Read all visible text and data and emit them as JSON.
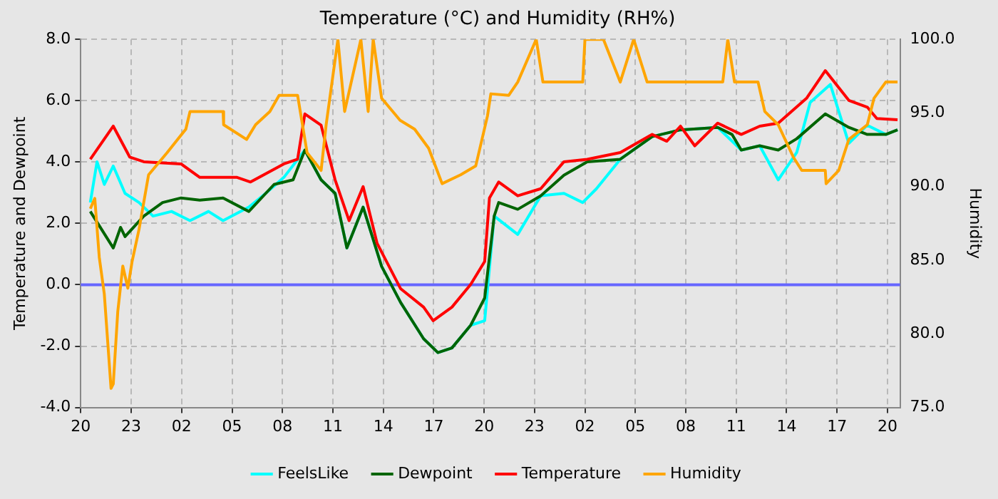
{
  "chart_data": {
    "type": "line",
    "title": "Temperature (°C) and Humidity (RH%)",
    "ylabel": "Temperature and Dewpoint",
    "y2label": "Humidity",
    "grid": true,
    "legend": "bottom",
    "marker": "none",
    "line_style": "solid",
    "xlim": [
      "--01-01T20:00",
      "--01-03T20:45"
    ],
    "xticks": [
      {
        "value": "--01-01T20:00",
        "label": "20"
      },
      {
        "value": "--01-01T23:00",
        "label": "23"
      },
      {
        "value": "--01-02T02:00",
        "label": "02"
      },
      {
        "value": "--01-02T05:00",
        "label": "05"
      },
      {
        "value": "--01-02T08:00",
        "label": "08"
      },
      {
        "value": "--01-02T11:00",
        "label": "11"
      },
      {
        "value": "--01-02T14:00",
        "label": "14"
      },
      {
        "value": "--01-02T17:00",
        "label": "17"
      },
      {
        "value": "--01-02T20:00",
        "label": "20"
      },
      {
        "value": "--01-02T23:00",
        "label": "23"
      },
      {
        "value": "--01-03T02:00",
        "label": "02"
      },
      {
        "value": "--01-03T05:00",
        "label": "05"
      },
      {
        "value": "--01-03T08:00",
        "label": "08"
      },
      {
        "value": "--01-03T11:00",
        "label": "11"
      },
      {
        "value": "--01-03T14:00",
        "label": "14"
      },
      {
        "value": "--01-03T17:00",
        "label": "17"
      },
      {
        "value": "--01-03T20:00",
        "label": "20"
      }
    ],
    "ylim": [
      -4,
      8
    ],
    "yticks": [
      {
        "value": -4,
        "label": "-4.0"
      },
      {
        "value": -2,
        "label": "-2.0"
      },
      {
        "value": 0,
        "label": "0.0"
      },
      {
        "value": 2,
        "label": "2.0"
      },
      {
        "value": 4,
        "label": "4.0"
      },
      {
        "value": 6,
        "label": "6.0"
      },
      {
        "value": 8,
        "label": "8.0"
      }
    ],
    "y2lim": [
      75,
      100
    ],
    "y2ticks": [
      {
        "value": 75,
        "label": "75.0"
      },
      {
        "value": 80,
        "label": "80.0"
      },
      {
        "value": 85,
        "label": "85.0"
      },
      {
        "value": 90,
        "label": "90.0"
      },
      {
        "value": 95,
        "label": "95.0"
      },
      {
        "value": 100,
        "label": "100.0"
      }
    ],
    "ref_lines": [
      {
        "axis": "y",
        "value": 0,
        "color": "#6666ff"
      }
    ],
    "series": [
      {
        "name": "FeelsLike",
        "color": "#00ffff",
        "x": [
          "--01-01T20:34",
          "--01-01T20:58",
          "--01-01T21:24",
          "--01-01T21:56",
          "--01-01T22:38",
          "--01-01T23:28",
          "--01-02T00:18",
          "--01-02T01:24",
          "--01-02T02:30",
          "--01-02T03:36",
          "--01-02T04:28",
          "--01-02T06:00",
          "--01-02T07:00",
          "--01-02T08:05",
          "--01-02T09:20",
          "--01-02T10:18",
          "--01-02T11:08",
          "--01-02T11:50",
          "--01-02T12:48",
          "--01-02T13:54",
          "--01-02T15:02",
          "--01-02T16:24",
          "--01-02T17:15",
          "--01-02T18:05",
          "--01-02T19:12",
          "--01-02T20:02",
          "--01-02T20:36",
          "--01-02T22:00",
          "--01-02T23:22",
          "--01-03T00:45",
          "--01-03T01:52",
          "--01-03T02:41",
          "--01-03T04:06",
          "--01-03T06:00",
          "--01-03T07:41",
          "--01-03T09:54",
          "--01-03T11:18",
          "--01-03T12:24",
          "--01-03T13:30",
          "--01-03T14:36",
          "--01-03T15:24",
          "--01-03T16:36",
          "--01-03T17:42",
          "--01-03T18:48",
          "--01-03T19:54",
          "--01-03T20:36"
        ],
        "values": [
          2.68,
          4.01,
          3.27,
          3.87,
          2.98,
          2.68,
          2.24,
          2.39,
          2.09,
          2.39,
          2.09,
          2.53,
          2.98,
          3.5,
          4.39,
          3.42,
          2.98,
          1.2,
          2.53,
          0.6,
          -0.58,
          -1.76,
          -2.21,
          -2.06,
          -1.32,
          -1.17,
          2.24,
          1.64,
          2.9,
          2.98,
          2.68,
          3.13,
          4.09,
          4.83,
          5.05,
          5.13,
          4.39,
          4.53,
          3.42,
          4.31,
          5.94,
          6.53,
          4.61,
          5.2,
          4.9,
          5.05
        ]
      },
      {
        "name": "Dewpoint",
        "color": "#006400",
        "x": [
          "--01-01T20:34",
          "--01-01T21:56",
          "--01-01T22:22",
          "--01-01T22:38",
          "--01-01T23:45",
          "--01-02T00:52",
          "--01-02T01:58",
          "--01-02T03:05",
          "--01-02T04:28",
          "--01-02T06:00",
          "--01-02T07:30",
          "--01-02T08:38",
          "--01-02T09:20",
          "--01-02T10:18",
          "--01-02T11:08",
          "--01-02T11:50",
          "--01-02T12:48",
          "--01-02T13:54",
          "--01-02T15:02",
          "--01-02T16:24",
          "--01-02T17:15",
          "--01-02T18:05",
          "--01-02T19:12",
          "--01-02T20:02",
          "--01-02T20:36",
          "--01-02T20:52",
          "--01-02T22:00",
          "--01-02T23:22",
          "--01-03T00:45",
          "--01-03T02:08",
          "--01-03T04:06",
          "--01-03T06:00",
          "--01-03T07:41",
          "--01-03T09:54",
          "--01-03T10:45",
          "--01-03T11:18",
          "--01-03T12:24",
          "--01-03T13:30",
          "--01-03T14:36",
          "--01-03T16:18",
          "--01-03T17:42",
          "--01-03T18:48",
          "--01-03T19:54",
          "--01-03T20:36"
        ],
        "values": [
          2.39,
          1.2,
          1.87,
          1.57,
          2.24,
          2.68,
          2.83,
          2.76,
          2.83,
          2.39,
          3.27,
          3.42,
          4.39,
          3.42,
          2.98,
          1.2,
          2.53,
          0.6,
          -0.58,
          -1.76,
          -2.21,
          -2.06,
          -1.32,
          -0.43,
          2.24,
          2.68,
          2.46,
          2.9,
          3.57,
          4.01,
          4.09,
          4.83,
          5.05,
          5.13,
          4.9,
          4.39,
          4.53,
          4.39,
          4.76,
          5.57,
          5.13,
          4.9,
          4.9,
          5.05
        ]
      },
      {
        "name": "Temperature",
        "color": "#ff0000",
        "x": [
          "--01-01T20:34",
          "--01-01T21:56",
          "--01-01T22:55",
          "--01-01T23:45",
          "--01-02T01:58",
          "--01-02T03:05",
          "--01-02T05:18",
          "--01-02T06:06",
          "--01-02T08:05",
          "--01-02T08:54",
          "--01-02T09:20",
          "--01-02T10:18",
          "--01-02T11:08",
          "--01-02T11:58",
          "--01-02T12:48",
          "--01-02T13:38",
          "--01-02T15:02",
          "--01-02T16:24",
          "--01-02T16:58",
          "--01-02T18:05",
          "--01-02T19:12",
          "--01-02T20:02",
          "--01-02T20:19",
          "--01-02T20:52",
          "--01-02T22:00",
          "--01-02T23:22",
          "--01-03T00:45",
          "--01-03T02:08",
          "--01-03T04:06",
          "--01-03T06:00",
          "--01-03T06:52",
          "--01-03T07:41",
          "--01-03T08:32",
          "--01-03T09:54",
          "--01-03T11:18",
          "--01-03T12:24",
          "--01-03T13:30",
          "--01-03T15:12",
          "--01-03T16:18",
          "--01-03T17:42",
          "--01-03T18:48",
          "--01-03T19:22",
          "--01-03T20:36"
        ],
        "values": [
          4.09,
          5.17,
          4.16,
          4.01,
          3.94,
          3.5,
          3.5,
          3.35,
          3.94,
          4.09,
          5.57,
          5.2,
          3.42,
          2.09,
          3.2,
          1.35,
          -0.13,
          -0.73,
          -1.17,
          -0.73,
          0.01,
          0.76,
          2.83,
          3.35,
          2.9,
          3.13,
          4.01,
          4.09,
          4.31,
          4.9,
          4.68,
          5.17,
          4.53,
          5.27,
          4.9,
          5.17,
          5.27,
          6.09,
          6.98,
          6.01,
          5.79,
          5.42,
          5.38
        ]
      },
      {
        "name": "Humidity",
        "color": "#ffa500",
        "axis": "y2",
        "x": [
          "--01-01T20:34",
          "--01-01T20:50",
          "--01-01T21:06",
          "--01-01T21:24",
          "--01-01T21:48",
          "--01-01T21:56",
          "--01-01T22:12",
          "--01-01T22:30",
          "--01-01T22:48",
          "--01-01T23:03",
          "--01-01T23:28",
          "--01-02T00:02",
          "--01-02T01:08",
          "--01-02T02:15",
          "--01-02T02:30",
          "--01-02T04:28",
          "--01-02T04:30",
          "--01-02T05:52",
          "--01-02T06:24",
          "--01-02T07:15",
          "--01-02T07:48",
          "--01-02T08:54",
          "--01-02T09:28",
          "--01-02T10:18",
          "--01-02T10:36",
          "--01-02T11:18",
          "--01-02T11:42",
          "--01-02T12:40",
          "--01-02T13:06",
          "--01-02T13:24",
          "--01-02T13:54",
          "--01-02T15:00",
          "--01-02T15:52",
          "--01-02T16:42",
          "--01-02T17:30",
          "--01-02T18:36",
          "--01-02T19:30",
          "--01-02T20:12",
          "--01-02T20:24",
          "--01-02T21:28",
          "--01-02T22:00",
          "--01-02T23:06",
          "--01-02T23:30",
          "--01-03T01:52",
          "--01-03T02:00",
          "--01-03T03:06",
          "--01-03T04:06",
          "--01-03T04:54",
          "--01-03T05:42",
          "--01-03T10:12",
          "--01-03T10:30",
          "--01-03T10:54",
          "--01-03T12:18",
          "--01-03T12:42",
          "--01-03T13:30",
          "--01-03T14:24",
          "--01-03T14:54",
          "--01-03T16:18",
          "--01-03T16:21",
          "--01-03T17:06",
          "--01-03T17:42",
          "--01-03T18:48",
          "--01-03T19:12",
          "--01-03T19:54",
          "--01-03T20:36"
        ],
        "values": [
          88.5,
          89.2,
          85.2,
          82.7,
          76.3,
          76.6,
          81.5,
          84.6,
          83.1,
          84.9,
          87.1,
          90.8,
          92.3,
          93.9,
          95.1,
          95.1,
          94.2,
          93.2,
          94.2,
          95.1,
          96.2,
          96.2,
          92.3,
          91.1,
          94.2,
          100,
          95.1,
          100,
          95.1,
          100,
          96.0,
          94.5,
          93.9,
          92.6,
          90.2,
          90.8,
          91.4,
          94.8,
          96.3,
          96.2,
          97.1,
          100,
          97.1,
          97.1,
          100,
          100,
          97.1,
          100,
          97.1,
          97.1,
          100,
          97.1,
          97.1,
          95.1,
          94.2,
          92.0,
          91.1,
          91.1,
          90.2,
          91.1,
          93.2,
          94.2,
          96.0,
          97.1,
          97.1
        ]
      }
    ]
  }
}
